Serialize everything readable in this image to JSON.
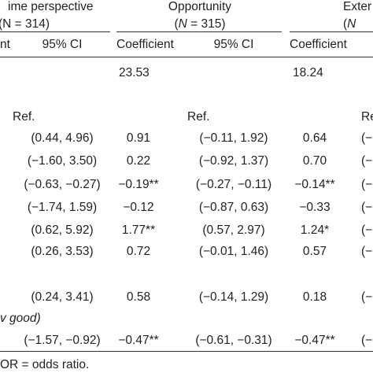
{
  "header": {
    "group1": {
      "title": "ime perspective",
      "n": "N = 314)",
      "n_paren": "("
    },
    "group2": {
      "title": "Opportunity",
      "n_open": "(",
      "n_label": "N",
      "n_rest": " = 315)"
    },
    "group3": {
      "title": "Exter",
      "n_open": "(",
      "n_label": "N"
    }
  },
  "subheaders": [
    "nt",
    "95% CI",
    "Coefficient",
    "95% CI",
    "Coefficient"
  ],
  "constant_row": {
    "c2": "23.53",
    "c3": "18.24"
  },
  "rows": [
    [
      "Ref.",
      "",
      "Ref.",
      "",
      "Re"
    ],
    [
      "(0.44, 4.96)",
      "0.91",
      "(−0.11, 1.92)",
      "0.64",
      "(−"
    ],
    [
      "(−1.60, 3.50)",
      "0.22",
      "(−0.92, 1.37)",
      "0.70",
      "(−"
    ],
    [
      "(−0.63, −0.27)",
      "−0.19**",
      "(−0.27, −0.11)",
      "−0.14**",
      "(−"
    ],
    [
      "(−1.74, 1.59)",
      "−0.12",
      "(−0.87, 0.63)",
      "−0.33",
      "(−"
    ],
    [
      "(0.62, 5.92)",
      "1.77**",
      "(0.57, 2.97)",
      "1.24*",
      "(−"
    ],
    [
      "(0.26, 3.53)",
      "0.72",
      "(−0.01, 1.46)",
      "0.57",
      "(−"
    ],
    [
      "(0.24, 3.41)",
      "0.58",
      "(−0.14, 1.29)",
      "0.18",
      "(−"
    ],
    [
      "(−1.57, −0.92)",
      "−0.47**",
      "(−0.61, −0.31)",
      "−0.47**",
      "(−"
    ]
  ],
  "section_label": "v good)",
  "footnote": "OR = odds ratio."
}
